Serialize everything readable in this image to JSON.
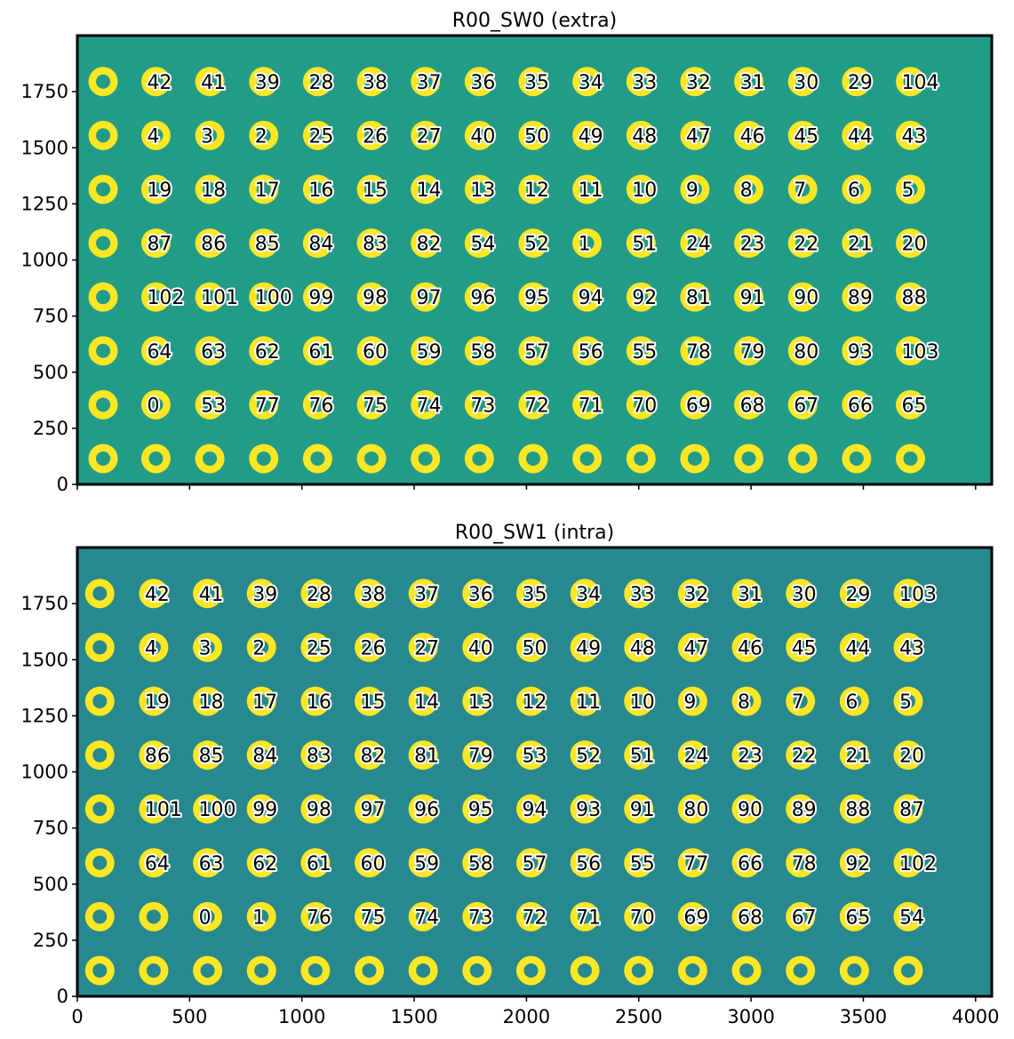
{
  "chart_data": [
    {
      "type": "scatter",
      "title": "R00_SW0 (extra)",
      "background_color": "#229b87",
      "ring_color": "#fde725",
      "hole_color": "#229b87",
      "xlim": [
        0,
        4072
      ],
      "ylim": [
        0,
        2000
      ],
      "xticks": [
        0,
        500,
        1000,
        1500,
        2000,
        2500,
        3000,
        3500,
        4000
      ],
      "xtick_labels_shown": false,
      "yticks": [
        0,
        250,
        500,
        750,
        1000,
        1250,
        1500,
        1750
      ],
      "yticks_labels": [
        "0",
        "250",
        "500",
        "750",
        "1000",
        "1250",
        "1500",
        "1750"
      ],
      "grid_x": [
        115,
        350,
        590,
        830,
        1070,
        1310,
        1550,
        1790,
        2030,
        2270,
        2510,
        2750,
        2990,
        3230,
        3470,
        3710
      ],
      "grid_y": [
        1795,
        1555,
        1315,
        1075,
        835,
        595,
        355,
        115
      ],
      "labels": [
        [
          "",
          "42",
          "41",
          "39",
          "28",
          "38",
          "37",
          "36",
          "35",
          "34",
          "33",
          "32",
          "31",
          "30",
          "29",
          "104"
        ],
        [
          "",
          "4",
          "3",
          "2",
          "25",
          "26",
          "27",
          "40",
          "50",
          "49",
          "48",
          "47",
          "46",
          "45",
          "44",
          "43"
        ],
        [
          "",
          "19",
          "18",
          "17",
          "16",
          "15",
          "14",
          "13",
          "12",
          "11",
          "10",
          "9",
          "8",
          "7",
          "6",
          "5"
        ],
        [
          "",
          "87",
          "86",
          "85",
          "84",
          "83",
          "82",
          "54",
          "52",
          "1",
          "51",
          "24",
          "23",
          "22",
          "21",
          "20"
        ],
        [
          "",
          "102",
          "101",
          "100",
          "99",
          "98",
          "97",
          "96",
          "95",
          "94",
          "92",
          "81",
          "91",
          "90",
          "89",
          "88"
        ],
        [
          "",
          "64",
          "63",
          "62",
          "61",
          "60",
          "59",
          "58",
          "57",
          "56",
          "55",
          "78",
          "79",
          "80",
          "93",
          "103"
        ],
        [
          "",
          "0",
          "53",
          "77",
          "76",
          "75",
          "74",
          "73",
          "72",
          "71",
          "70",
          "69",
          "68",
          "67",
          "66",
          "65"
        ],
        [
          "",
          "",
          "",
          "",
          "",
          "",
          "",
          "",
          "",
          "",
          "",
          "",
          "",
          "",
          "",
          ""
        ]
      ]
    },
    {
      "type": "scatter",
      "title": "R00_SW1 (intra)",
      "background_color": "#27888e",
      "ring_color": "#fde725",
      "hole_color": "#27888e",
      "xlim": [
        0,
        4072
      ],
      "ylim": [
        0,
        2000
      ],
      "xticks": [
        0,
        500,
        1000,
        1500,
        2000,
        2500,
        3000,
        3500,
        4000
      ],
      "xtick_labels_shown": true,
      "xticks_labels": [
        "0",
        "500",
        "1000",
        "1500",
        "2000",
        "2500",
        "3000",
        "3500",
        "4000"
      ],
      "yticks": [
        0,
        250,
        500,
        750,
        1000,
        1250,
        1500,
        1750
      ],
      "yticks_labels": [
        "0",
        "250",
        "500",
        "750",
        "1000",
        "1250",
        "1500",
        "1750"
      ],
      "grid_x": [
        100,
        340,
        580,
        820,
        1060,
        1300,
        1540,
        1780,
        2020,
        2260,
        2500,
        2740,
        2980,
        3220,
        3460,
        3700
      ],
      "grid_y": [
        1795,
        1555,
        1315,
        1075,
        835,
        595,
        355,
        115
      ],
      "labels": [
        [
          "",
          "42",
          "41",
          "39",
          "28",
          "38",
          "37",
          "36",
          "35",
          "34",
          "33",
          "32",
          "31",
          "30",
          "29",
          "103"
        ],
        [
          "",
          "4",
          "3",
          "2",
          "25",
          "26",
          "27",
          "40",
          "50",
          "49",
          "48",
          "47",
          "46",
          "45",
          "44",
          "43"
        ],
        [
          "",
          "19",
          "18",
          "17",
          "16",
          "15",
          "14",
          "13",
          "12",
          "11",
          "10",
          "9",
          "8",
          "7",
          "6",
          "5"
        ],
        [
          "",
          "86",
          "85",
          "84",
          "83",
          "82",
          "81",
          "79",
          "53",
          "52",
          "51",
          "24",
          "23",
          "22",
          "21",
          "20"
        ],
        [
          "",
          "101",
          "100",
          "99",
          "98",
          "97",
          "96",
          "95",
          "94",
          "93",
          "91",
          "80",
          "90",
          "89",
          "88",
          "87"
        ],
        [
          "",
          "64",
          "63",
          "62",
          "61",
          "60",
          "59",
          "58",
          "57",
          "56",
          "55",
          "77",
          "66",
          "78",
          "92",
          "102"
        ],
        [
          "",
          "",
          "0",
          "1",
          "76",
          "75",
          "74",
          "73",
          "72",
          "71",
          "70",
          "69",
          "68",
          "67",
          "65",
          "54"
        ],
        [
          "",
          "",
          "",
          "",
          "",
          "",
          "",
          "",
          "",
          "",
          "",
          "",
          "",
          "",
          "",
          ""
        ]
      ]
    }
  ]
}
